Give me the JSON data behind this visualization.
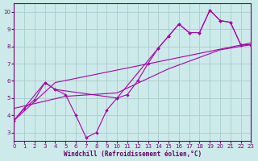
{
  "xlabel": "Windchill (Refroidissement éolien,°C)",
  "bg_color": "#cceaea",
  "line_color": "#aa00aa",
  "grid_color": "#aacccc",
  "xlim": [
    0,
    23
  ],
  "ylim": [
    2.5,
    10.5
  ],
  "xticks": [
    0,
    1,
    2,
    3,
    4,
    5,
    6,
    7,
    8,
    9,
    10,
    11,
    12,
    13,
    14,
    15,
    16,
    17,
    18,
    19,
    20,
    21,
    22,
    23
  ],
  "yticks": [
    3,
    4,
    5,
    6,
    7,
    8,
    9,
    10
  ],
  "curve1_x": [
    0,
    1,
    2,
    3,
    4,
    5,
    6,
    7,
    8,
    9,
    10,
    11,
    12,
    13,
    14,
    15,
    16,
    17,
    18,
    19,
    20,
    21,
    22,
    23
  ],
  "curve1_y": [
    3.7,
    4.4,
    4.9,
    5.9,
    5.5,
    5.2,
    4.0,
    2.7,
    3.0,
    4.3,
    5.0,
    5.2,
    6.0,
    7.0,
    7.9,
    8.6,
    9.3,
    8.8,
    8.8,
    10.1,
    9.5,
    9.4,
    8.1,
    8.1
  ],
  "curve2_x": [
    0,
    3,
    4,
    10,
    14,
    15,
    16,
    17,
    18,
    19,
    20,
    21,
    22,
    23
  ],
  "curve2_y": [
    3.7,
    5.9,
    5.5,
    5.0,
    7.9,
    8.6,
    9.3,
    8.8,
    8.8,
    10.1,
    9.5,
    9.4,
    8.1,
    8.1
  ],
  "line3_x": [
    0,
    4,
    23
  ],
  "line3_y": [
    3.7,
    5.9,
    8.2
  ],
  "line4_x": [
    0,
    5,
    10,
    15,
    20,
    23
  ],
  "line4_y": [
    4.4,
    5.1,
    5.3,
    6.7,
    7.8,
    8.1
  ]
}
